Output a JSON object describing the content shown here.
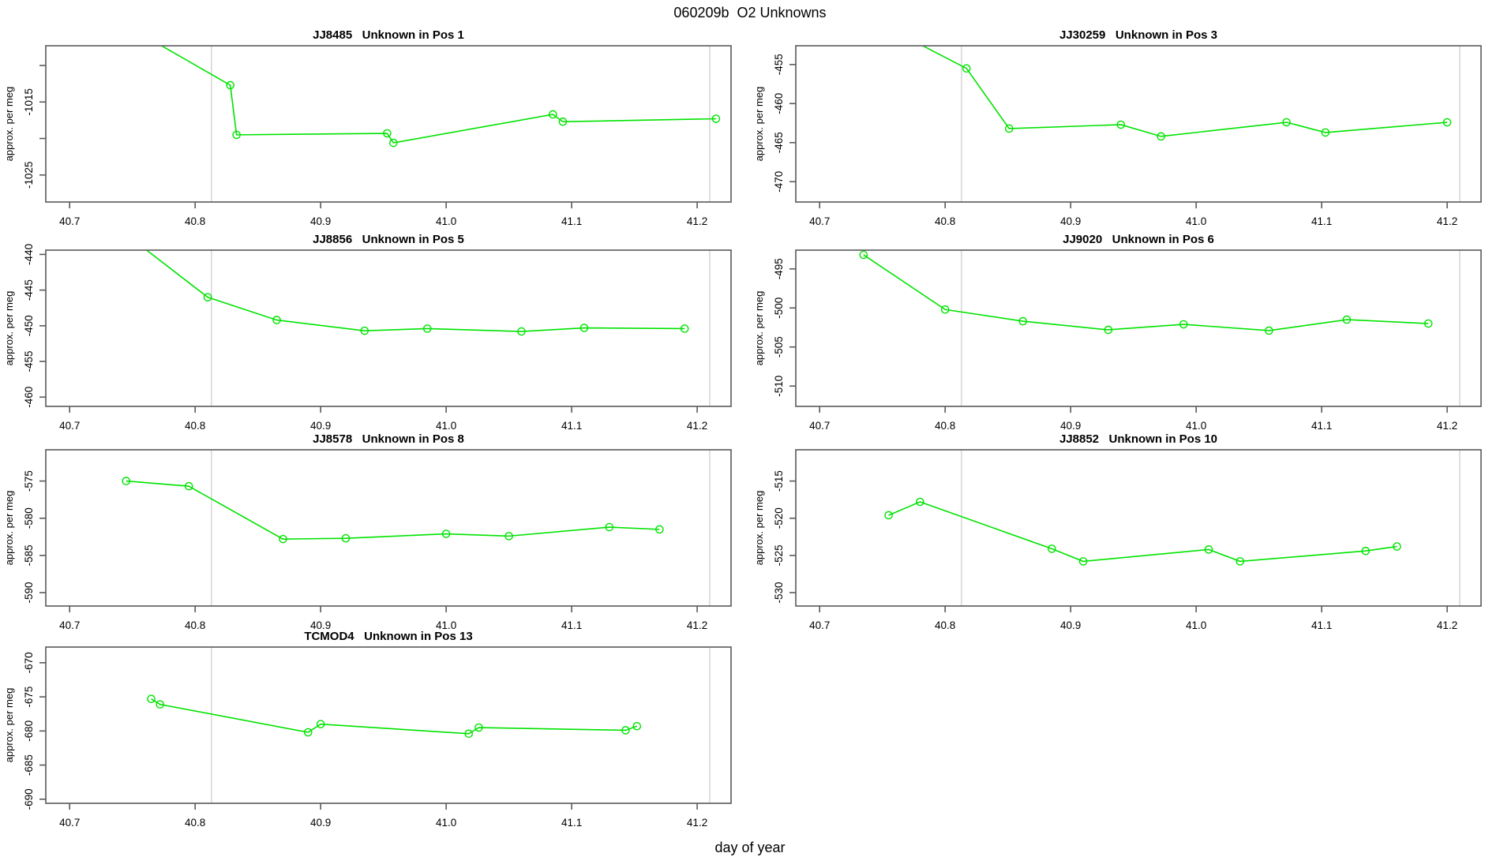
{
  "header": {
    "title": "060209b  O2 Unknowns"
  },
  "footer": {
    "xlabel": "day of year"
  },
  "axes": {
    "xlim": [
      40.681,
      41.227
    ],
    "x_ticks": [
      {
        "v": 40.7,
        "label": "40.7"
      },
      {
        "v": 40.8,
        "label": "40.8"
      },
      {
        "v": 40.9,
        "label": "40.9"
      },
      {
        "v": 41.0,
        "label": "41.0"
      },
      {
        "v": 41.1,
        "label": "41.1"
      },
      {
        "v": 41.2,
        "label": "41.2"
      }
    ],
    "ylabel": "approx. per meg",
    "vlines": [
      40.813,
      41.21
    ]
  },
  "style": {
    "line_color": "#00e300",
    "marker_color": "#00e300",
    "vline_color": "#d8d8d8",
    "box_color": "#595959",
    "tick_color": "#595959",
    "text_color": "#000000",
    "background": "#ffffff"
  },
  "chart_data": [
    {
      "type": "line",
      "title": "JJ8485   Unknown in Pos 1",
      "sample": "JJ8485",
      "position_label": "Unknown in Pos 1",
      "row": 0,
      "col": 0,
      "ylim": [
        -1028.7,
        -1007.3
      ],
      "yticks": [
        {
          "v": -1010,
          "label": ""
        },
        {
          "v": -1015,
          "label": "-1015"
        },
        {
          "v": -1020,
          "label": ""
        },
        {
          "v": -1025,
          "label": "-1025"
        }
      ],
      "x": [
        40.75,
        40.828,
        40.833,
        40.953,
        40.958,
        41.085,
        41.093,
        41.215
      ],
      "y": [
        -1005.0,
        -1012.7,
        -1019.5,
        -1019.3,
        -1020.6,
        -1016.7,
        -1017.7,
        -1017.3
      ]
    },
    {
      "type": "line",
      "title": "JJ30259   Unknown in Pos 3",
      "sample": "JJ30259",
      "position_label": "Unknown in Pos 3",
      "row": 0,
      "col": 1,
      "ylim": [
        -472.6,
        -452.6
      ],
      "yticks": [
        {
          "v": -455,
          "label": "-455"
        },
        {
          "v": -460,
          "label": "-460"
        },
        {
          "v": -465,
          "label": "-465"
        },
        {
          "v": -470,
          "label": "-470"
        }
      ],
      "x": [
        40.745,
        40.817,
        40.851,
        40.94,
        40.972,
        41.072,
        41.103,
        41.2
      ],
      "y": [
        -449.5,
        -455.5,
        -463.2,
        -462.7,
        -464.2,
        -462.4,
        -463.7,
        -462.4
      ]
    },
    {
      "type": "line",
      "title": "JJ8856   Unknown in Pos 5",
      "sample": "JJ8856",
      "position_label": "Unknown in Pos 5",
      "row": 1,
      "col": 0,
      "ylim": [
        -461.3,
        -439.4
      ],
      "yticks": [
        {
          "v": -440,
          "label": "-440"
        },
        {
          "v": -445,
          "label": "-445"
        },
        {
          "v": -450,
          "label": "-450"
        },
        {
          "v": -455,
          "label": "-455"
        },
        {
          "v": -460,
          "label": "-460"
        }
      ],
      "x": [
        40.74,
        40.81,
        40.865,
        40.935,
        40.985,
        41.06,
        41.11,
        41.19
      ],
      "y": [
        -436.5,
        -446.0,
        -449.2,
        -450.7,
        -450.4,
        -450.8,
        -450.3,
        -450.4
      ]
    },
    {
      "type": "line",
      "title": "JJ9020   Unknown in Pos 6",
      "sample": "JJ9020",
      "position_label": "Unknown in Pos 6",
      "row": 1,
      "col": 1,
      "ylim": [
        -512.6,
        -492.6
      ],
      "yticks": [
        {
          "v": -495,
          "label": "-495"
        },
        {
          "v": -500,
          "label": "-500"
        },
        {
          "v": -505,
          "label": "-505"
        },
        {
          "v": -510,
          "label": "-510"
        }
      ],
      "x": [
        40.735,
        40.8,
        40.862,
        40.93,
        40.99,
        41.058,
        41.12,
        41.185
      ],
      "y": [
        -493.2,
        -500.2,
        -501.7,
        -502.8,
        -502.1,
        -502.9,
        -501.5,
        -502.0
      ]
    },
    {
      "type": "line",
      "title": "JJ8578   Unknown in Pos 8",
      "sample": "JJ8578",
      "position_label": "Unknown in Pos 8",
      "row": 2,
      "col": 0,
      "ylim": [
        -591.8,
        -570.8
      ],
      "yticks": [
        {
          "v": -575,
          "label": "-575"
        },
        {
          "v": -580,
          "label": "-580"
        },
        {
          "v": -585,
          "label": "-585"
        },
        {
          "v": -590,
          "label": "-590"
        }
      ],
      "x": [
        40.745,
        40.795,
        40.87,
        40.92,
        41.0,
        41.05,
        41.13,
        41.17
      ],
      "y": [
        -575.0,
        -575.7,
        -582.8,
        -582.7,
        -582.1,
        -582.4,
        -581.2,
        -581.5
      ]
    },
    {
      "type": "line",
      "title": "JJ8852   Unknown in Pos 10",
      "sample": "JJ8852",
      "position_label": "Unknown in Pos 10",
      "row": 2,
      "col": 1,
      "ylim": [
        -531.8,
        -510.8
      ],
      "yticks": [
        {
          "v": -515,
          "label": "-515"
        },
        {
          "v": -520,
          "label": "-520"
        },
        {
          "v": -525,
          "label": "-525"
        },
        {
          "v": -530,
          "label": "-530"
        }
      ],
      "x": [
        40.755,
        40.78,
        40.885,
        40.91,
        41.01,
        41.035,
        41.135,
        41.16
      ],
      "y": [
        -519.6,
        -517.8,
        -524.1,
        -525.8,
        -524.2,
        -525.8,
        -524.4,
        -523.8
      ]
    },
    {
      "type": "line",
      "title": "TCMOD4   Unknown in Pos 13",
      "sample": "TCMOD4",
      "position_label": "Unknown in Pos 13",
      "row": 3,
      "col": 0,
      "ylim": [
        -690.6,
        -667.7
      ],
      "yticks": [
        {
          "v": -670,
          "label": "-670"
        },
        {
          "v": -675,
          "label": "-675"
        },
        {
          "v": -680,
          "label": "-680"
        },
        {
          "v": -685,
          "label": "-685"
        },
        {
          "v": -690,
          "label": "-690"
        }
      ],
      "x": [
        40.765,
        40.772,
        40.89,
        40.9,
        41.018,
        41.026,
        41.143,
        41.152
      ],
      "y": [
        -675.3,
        -676.1,
        -680.2,
        -679.0,
        -680.4,
        -679.5,
        -679.9,
        -679.3
      ]
    }
  ]
}
